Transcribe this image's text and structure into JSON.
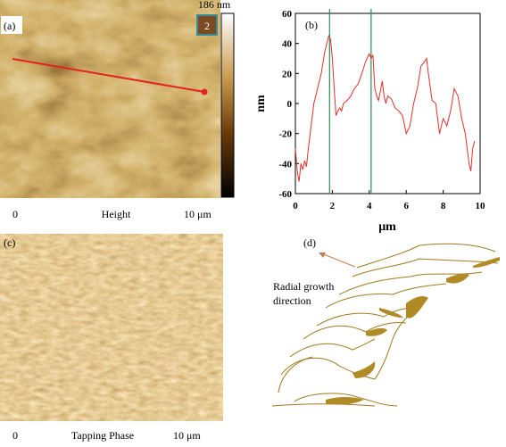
{
  "chart_data": {
    "type": "line",
    "label": "(b)",
    "ylabel": "nm",
    "xlabel": "μm",
    "xlim": [
      0,
      10
    ],
    "ylim": [
      -60,
      60
    ],
    "xticks": [
      0,
      2,
      4,
      6,
      8,
      10
    ],
    "yticks": [
      -60,
      -40,
      -20,
      0,
      20,
      40,
      60
    ],
    "vlines": [
      1.85,
      4.1
    ],
    "vline_color": "#2e8b57",
    "x": [
      0,
      0.1,
      0.2,
      0.3,
      0.4,
      0.5,
      0.6,
      0.7,
      0.8,
      0.9,
      1.0,
      1.1,
      1.2,
      1.3,
      1.4,
      1.5,
      1.6,
      1.7,
      1.8,
      1.9,
      2.0,
      2.1,
      2.2,
      2.3,
      2.4,
      2.5,
      2.6,
      2.8,
      3.0,
      3.2,
      3.4,
      3.6,
      3.8,
      4.0,
      4.1,
      4.2,
      4.3,
      4.4,
      4.5,
      4.6,
      4.7,
      4.8,
      4.9,
      5.0,
      5.2,
      5.4,
      5.6,
      5.8,
      6.0,
      6.2,
      6.4,
      6.6,
      6.8,
      7.0,
      7.1,
      7.2,
      7.4,
      7.6,
      7.8,
      8.0,
      8.2,
      8.4,
      8.6,
      8.8,
      9.0,
      9.2,
      9.4,
      9.5,
      9.6,
      9.7
    ],
    "series": [
      {
        "color": "#e0302a",
        "values": [
          -30,
          -45,
          -52,
          -40,
          -44,
          -38,
          -42,
          -30,
          -20,
          -10,
          0,
          5,
          10,
          15,
          20,
          28,
          35,
          40,
          45,
          43,
          30,
          10,
          -8,
          -5,
          -3,
          -5,
          0,
          2,
          5,
          10,
          13,
          20,
          28,
          33,
          30,
          32,
          10,
          5,
          2,
          8,
          15,
          5,
          0,
          5,
          3,
          -3,
          -5,
          -8,
          -20,
          -15,
          0,
          10,
          25,
          28,
          30,
          20,
          2,
          0,
          -20,
          -10,
          -15,
          -5,
          10,
          5,
          -10,
          -20,
          -40,
          -45,
          -30,
          -25
        ]
      }
    ]
  },
  "panel_a": {
    "label": "(a)",
    "colorbar_label": "186 nm",
    "box_label": "2",
    "start": "0",
    "caption": "Height",
    "end": "10 μm"
  },
  "panel_c": {
    "label": "(c)",
    "start": "0",
    "caption": "Tapping Phase",
    "end": "10 μm"
  },
  "panel_d": {
    "label": "(d)",
    "annotation": [
      "Radial growth",
      "direction"
    ]
  }
}
